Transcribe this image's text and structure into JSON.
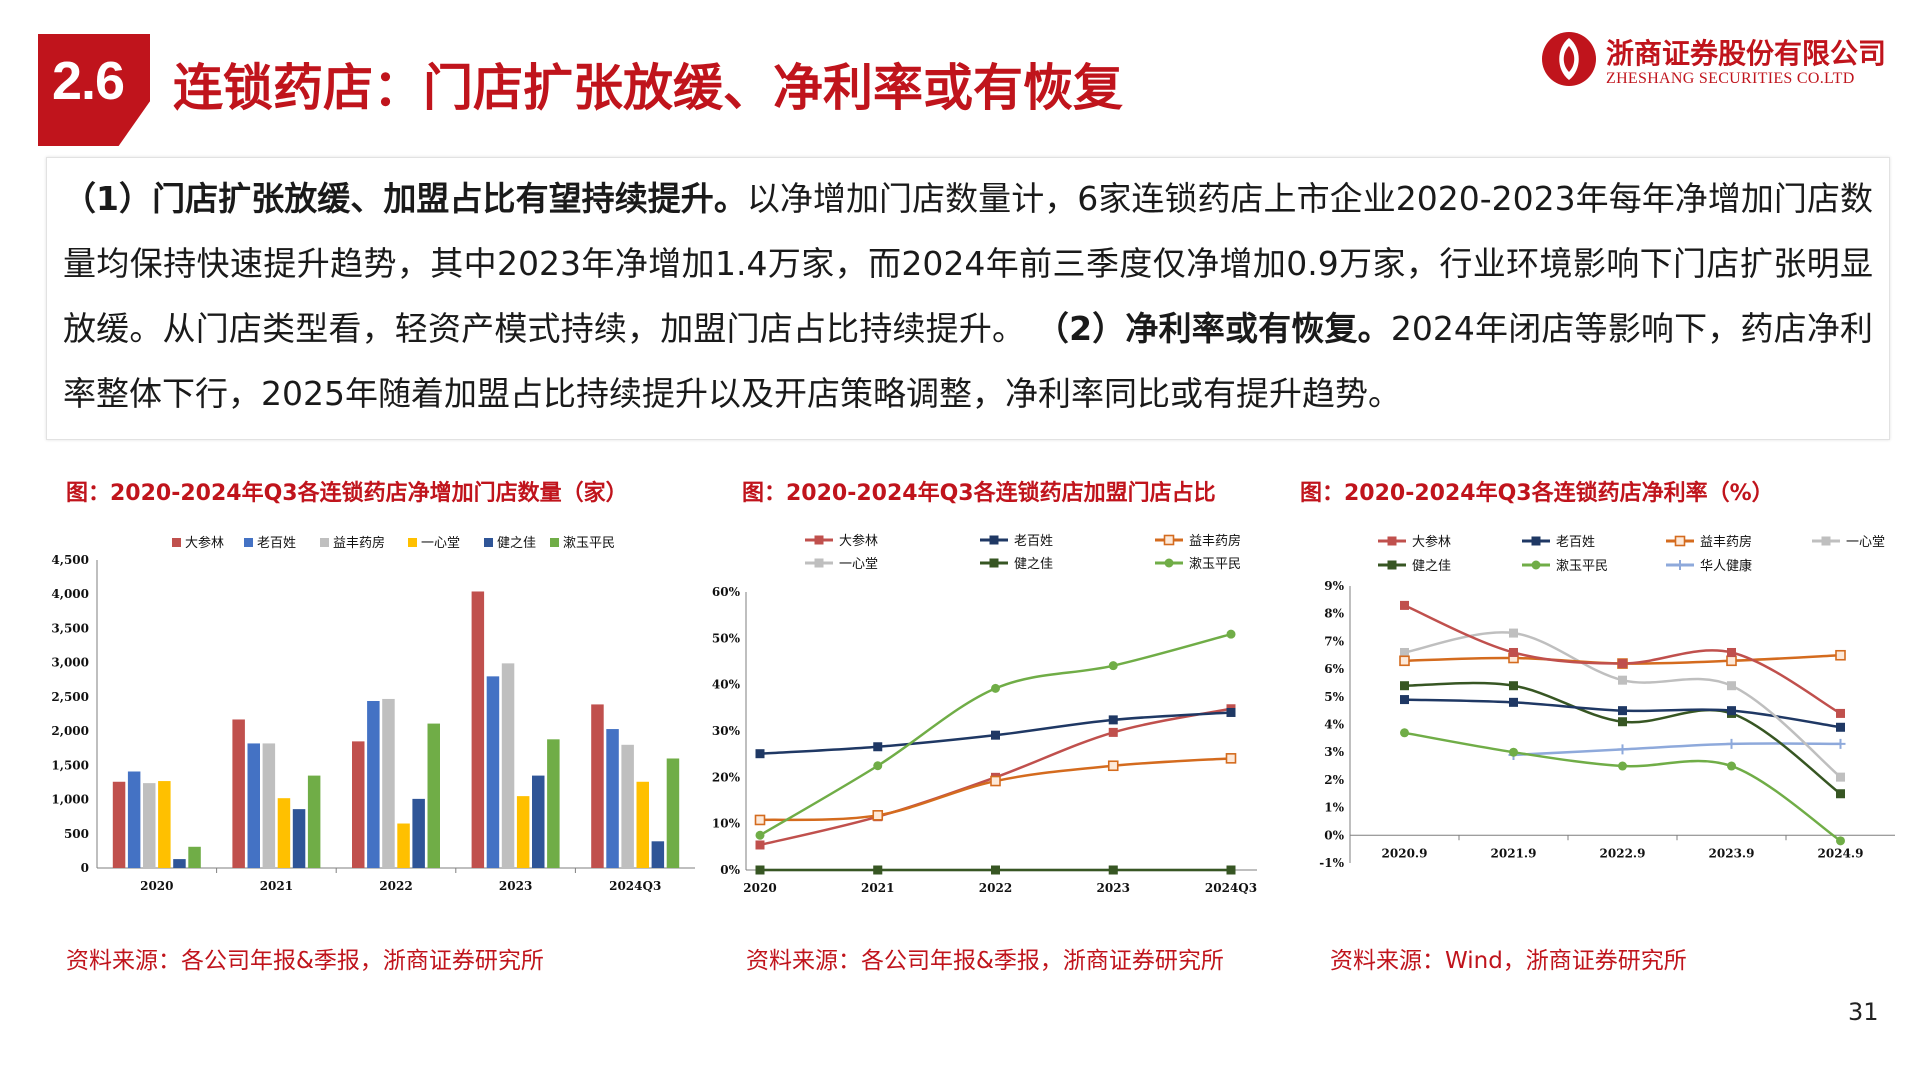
{
  "header": {
    "section_number": "2.6",
    "title": "连锁药店：门店扩张放缓、净利率或有恢复",
    "logo_cn": "浙商证券股份有限公司",
    "logo_en": "ZHESHANG SECURITIES CO.LTD"
  },
  "body": {
    "p1_bold": "（1）门店扩张放缓、加盟占比有望持续提升。",
    "p1_text": "以净增加门店数量计，6家连锁药店上市企业2020-2023年每年净增加门店数量均保持快速提升趋势，其中2023年净增加1.4万家，而2024年前三季度仅净增加0.9万家，行业环境影响下门店扩张明显放缓。从门店类型看，轻资产模式持续，加盟门店占比持续提升。",
    "p2_bold": "（2）净利率或有恢复。",
    "p2_text": "2024年闭店等影响下，药店净利率整体下行，2025年随着加盟占比持续提升以及开店策略调整，净利率同比或有提升趋势。"
  },
  "colors": {
    "brand": "#c0141c",
    "dashenlin": "#c0504d",
    "laobaixing": "#1f3864",
    "yifeng": "#d46b1e",
    "yixintang": "#bfbfbf",
    "jianzhijia": "#375623",
    "shuyu": "#70ad47",
    "huaren": "#8ea9db",
    "bar_blue": "#4472c4",
    "bar_gray": "#bfbfbf",
    "bar_yellow": "#ffc000",
    "bar_navy": "#2f5597",
    "bar_green": "#70ad47"
  },
  "chart_data": [
    {
      "type": "bar",
      "title": "图：2020-2024年Q3各连锁药店净增加门店数量（家）",
      "source": "资料来源：各公司年报&季报，浙商证券研究所",
      "categories": [
        "2020",
        "2021",
        "2022",
        "2023",
        "2024Q3"
      ],
      "ylim": [
        0,
        4500
      ],
      "yticks": [
        "0",
        "500",
        "1,000",
        "1,500",
        "2,000",
        "2,500",
        "3,000",
        "3,500",
        "4,000",
        "4,500"
      ],
      "series": [
        {
          "name": "大参林",
          "color": "#c0504d",
          "values": [
            1260,
            2170,
            1850,
            4040,
            2390
          ]
        },
        {
          "name": "老百姓",
          "color": "#4472c4",
          "values": [
            1410,
            1820,
            2440,
            2800,
            2030
          ]
        },
        {
          "name": "益丰药房",
          "color": "#bfbfbf",
          "values": [
            1240,
            1820,
            2470,
            2990,
            1800
          ]
        },
        {
          "name": "一心堂",
          "color": "#ffc000",
          "values": [
            1270,
            1020,
            650,
            1050,
            1260
          ]
        },
        {
          "name": "健之佳",
          "color": "#2f5597",
          "values": [
            130,
            860,
            1010,
            1350,
            390
          ]
        },
        {
          "name": "漱玉平民",
          "color": "#70ad47",
          "values": [
            310,
            1350,
            2110,
            1880,
            1600
          ]
        }
      ]
    },
    {
      "type": "line",
      "title": "图：2020-2024年Q3各连锁药店加盟门店占比",
      "source": "资料来源：各公司年报&季报，浙商证券研究所",
      "categories": [
        "2020",
        "2021",
        "2022",
        "2023",
        "2024Q3"
      ],
      "ylim": [
        0,
        60
      ],
      "yticks": [
        "0%",
        "10%",
        "20%",
        "30%",
        "40%",
        "50%",
        "60%"
      ],
      "series": [
        {
          "name": "大参林",
          "color": "#c0504d",
          "marker": "square",
          "values": [
            5.4,
            11.5,
            20,
            29.7,
            34.8
          ]
        },
        {
          "name": "老百姓",
          "color": "#1f3864",
          "marker": "square",
          "values": [
            25.1,
            26.6,
            29.1,
            32.4,
            34
          ]
        },
        {
          "name": "益丰药房",
          "color": "#d46b1e",
          "marker": "square-open",
          "values": [
            10.8,
            11.8,
            19.2,
            22.5,
            24.1
          ]
        },
        {
          "name": "一心堂",
          "color": "#bfbfbf",
          "marker": "square",
          "values": [
            0,
            0,
            0,
            0,
            0
          ]
        },
        {
          "name": "健之佳",
          "color": "#375623",
          "marker": "square",
          "values": [
            0,
            0,
            0,
            0,
            0
          ]
        },
        {
          "name": "漱玉平民",
          "color": "#70ad47",
          "marker": "circle",
          "values": [
            7.5,
            22.5,
            39.2,
            44.1,
            50.9
          ]
        }
      ]
    },
    {
      "type": "line",
      "title": "图：2020-2024年Q3各连锁药店净利率（%）",
      "source": "资料来源：Wind，浙商证券研究所",
      "categories": [
        "2020.9",
        "2021.9",
        "2022.9",
        "2023.9",
        "2024.9"
      ],
      "ylim": [
        -1,
        9
      ],
      "yticks": [
        "-1%",
        "0%",
        "1%",
        "2%",
        "3%",
        "4%",
        "5%",
        "6%",
        "7%",
        "8%",
        "9%"
      ],
      "series": [
        {
          "name": "大参林",
          "color": "#c0504d",
          "marker": "square",
          "values": [
            8.3,
            6.6,
            6.2,
            6.6,
            4.4
          ]
        },
        {
          "name": "老百姓",
          "color": "#1f3864",
          "marker": "square",
          "values": [
            4.9,
            4.8,
            4.5,
            4.5,
            3.9
          ]
        },
        {
          "name": "益丰药房",
          "color": "#d46b1e",
          "marker": "square-open",
          "values": [
            6.3,
            6.4,
            6.2,
            6.3,
            6.5
          ]
        },
        {
          "name": "一心堂",
          "color": "#bfbfbf",
          "marker": "square",
          "values": [
            6.6,
            7.3,
            5.6,
            5.4,
            2.1
          ]
        },
        {
          "name": "健之佳",
          "color": "#375623",
          "marker": "square",
          "values": [
            5.4,
            5.4,
            4.1,
            4.4,
            1.5
          ]
        },
        {
          "name": "漱玉平民",
          "color": "#70ad47",
          "marker": "circle",
          "values": [
            3.7,
            3.0,
            2.5,
            2.5,
            -0.2
          ]
        },
        {
          "name": "华人健康",
          "color": "#8ea9db",
          "marker": "plus",
          "values": [
            null,
            2.9,
            3.1,
            3.3,
            3.3
          ]
        }
      ]
    }
  ],
  "page_number": "31"
}
